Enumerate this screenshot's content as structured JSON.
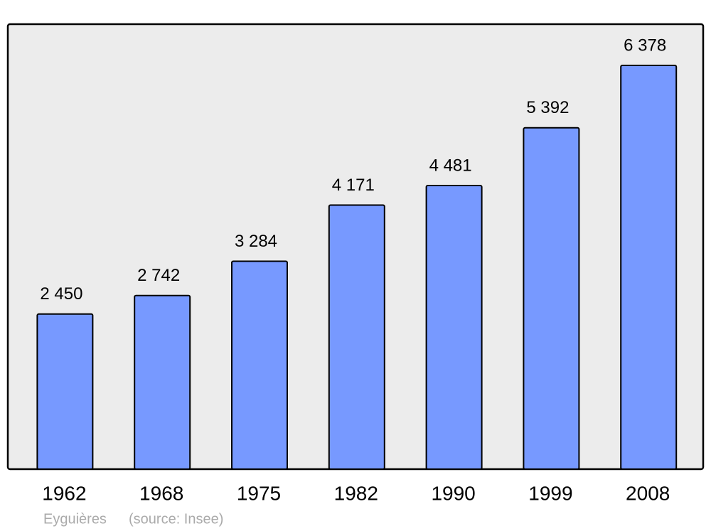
{
  "chart_data": {
    "type": "bar",
    "categories": [
      "1962",
      "1968",
      "1975",
      "1982",
      "1990",
      "1999",
      "2008"
    ],
    "values": [
      2450,
      2742,
      3284,
      4171,
      4481,
      5392,
      6378
    ],
    "value_labels": [
      "2 450",
      "2 742",
      "3 284",
      "4 171",
      "4 481",
      "5 392",
      "6 378"
    ],
    "color": "#7799ff",
    "caption": "Eyguières",
    "source": "(source: Insee)"
  }
}
